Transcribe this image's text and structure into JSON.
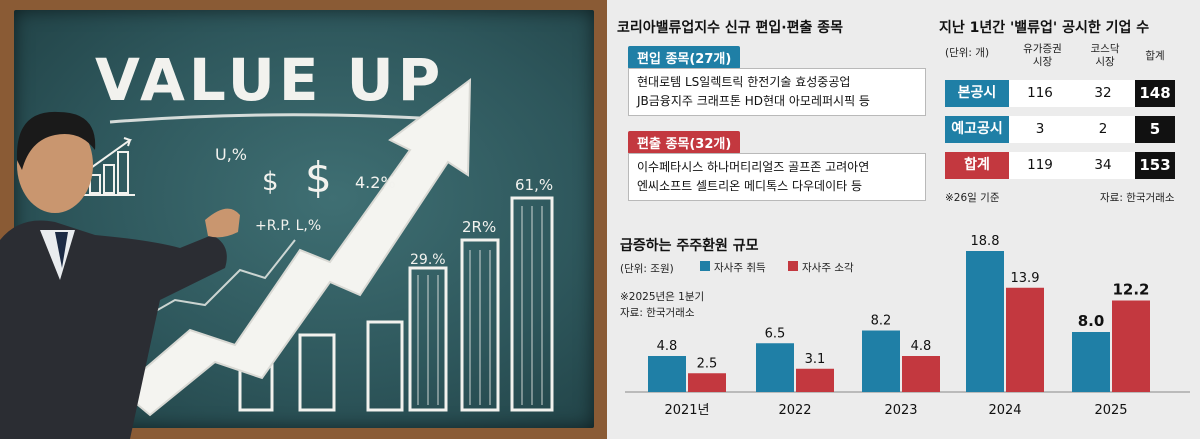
{
  "board": {
    "headline": "VALUE UP",
    "chalk_notes": [
      "U,%",
      "$",
      "$",
      "4.2%",
      "+R.P. L,%",
      "2R%",
      "29.%",
      "61,%"
    ]
  },
  "new_index": {
    "title": "코리아밸류업지수 신규 편입·편출 종목",
    "included": {
      "label": "편입 종목(27개)",
      "lines": [
        "현대로템 LS일렉트릭 한전기술 효성중공업",
        "JB금융지주 크래프톤 HD현대 아모레퍼시픽 등"
      ]
    },
    "excluded": {
      "label": "편출 종목(32개)",
      "lines": [
        "이수페타시스 하나머티리얼즈 골프존 고려아연",
        "엔씨소프트 셀트리온 메디톡스 다우데이타 등"
      ]
    }
  },
  "disclosure": {
    "title": "지난 1년간 '밸류업' 공시한 기업 수",
    "unit": "(단위: 개)",
    "col1": "유가증권\n시장",
    "col2": "코스닥\n시장",
    "col3": "합계",
    "rows": [
      {
        "label": "본공시",
        "kospi": "116",
        "kosdaq": "32",
        "total": "148",
        "color": "#1f7fa6"
      },
      {
        "label": "예고공시",
        "kospi": "3",
        "kosdaq": "2",
        "total": "5",
        "color": "#1f7fa6"
      },
      {
        "label": "합계",
        "kospi": "119",
        "kosdaq": "34",
        "total": "153",
        "color": "#c3383f"
      }
    ],
    "note": "※26일 기준",
    "source": "자료: 한국거래소"
  },
  "chart_data": {
    "type": "bar",
    "title": "급증하는 주주환원 규모",
    "unit": "(단위: 조원)",
    "note": "※2025년은 1분기",
    "source": "자료: 한국거래소",
    "categories": [
      "2021년",
      "2022",
      "2023",
      "2024",
      "2025"
    ],
    "series": [
      {
        "name": "자사주 취득",
        "color": "#1f7fa6",
        "values": [
          4.8,
          6.5,
          8.2,
          18.8,
          8.0
        ],
        "labels": [
          "4.8",
          "6.5",
          "8.2",
          "18.8",
          "8.0"
        ]
      },
      {
        "name": "자사주 소각",
        "color": "#c3383f",
        "values": [
          2.5,
          3.1,
          4.8,
          13.9,
          12.2
        ],
        "labels": [
          "2.5",
          "3.1",
          "4.8",
          "13.9",
          "12.2"
        ]
      }
    ],
    "ylim": [
      0,
      20
    ],
    "grid": false,
    "legend": "top"
  }
}
